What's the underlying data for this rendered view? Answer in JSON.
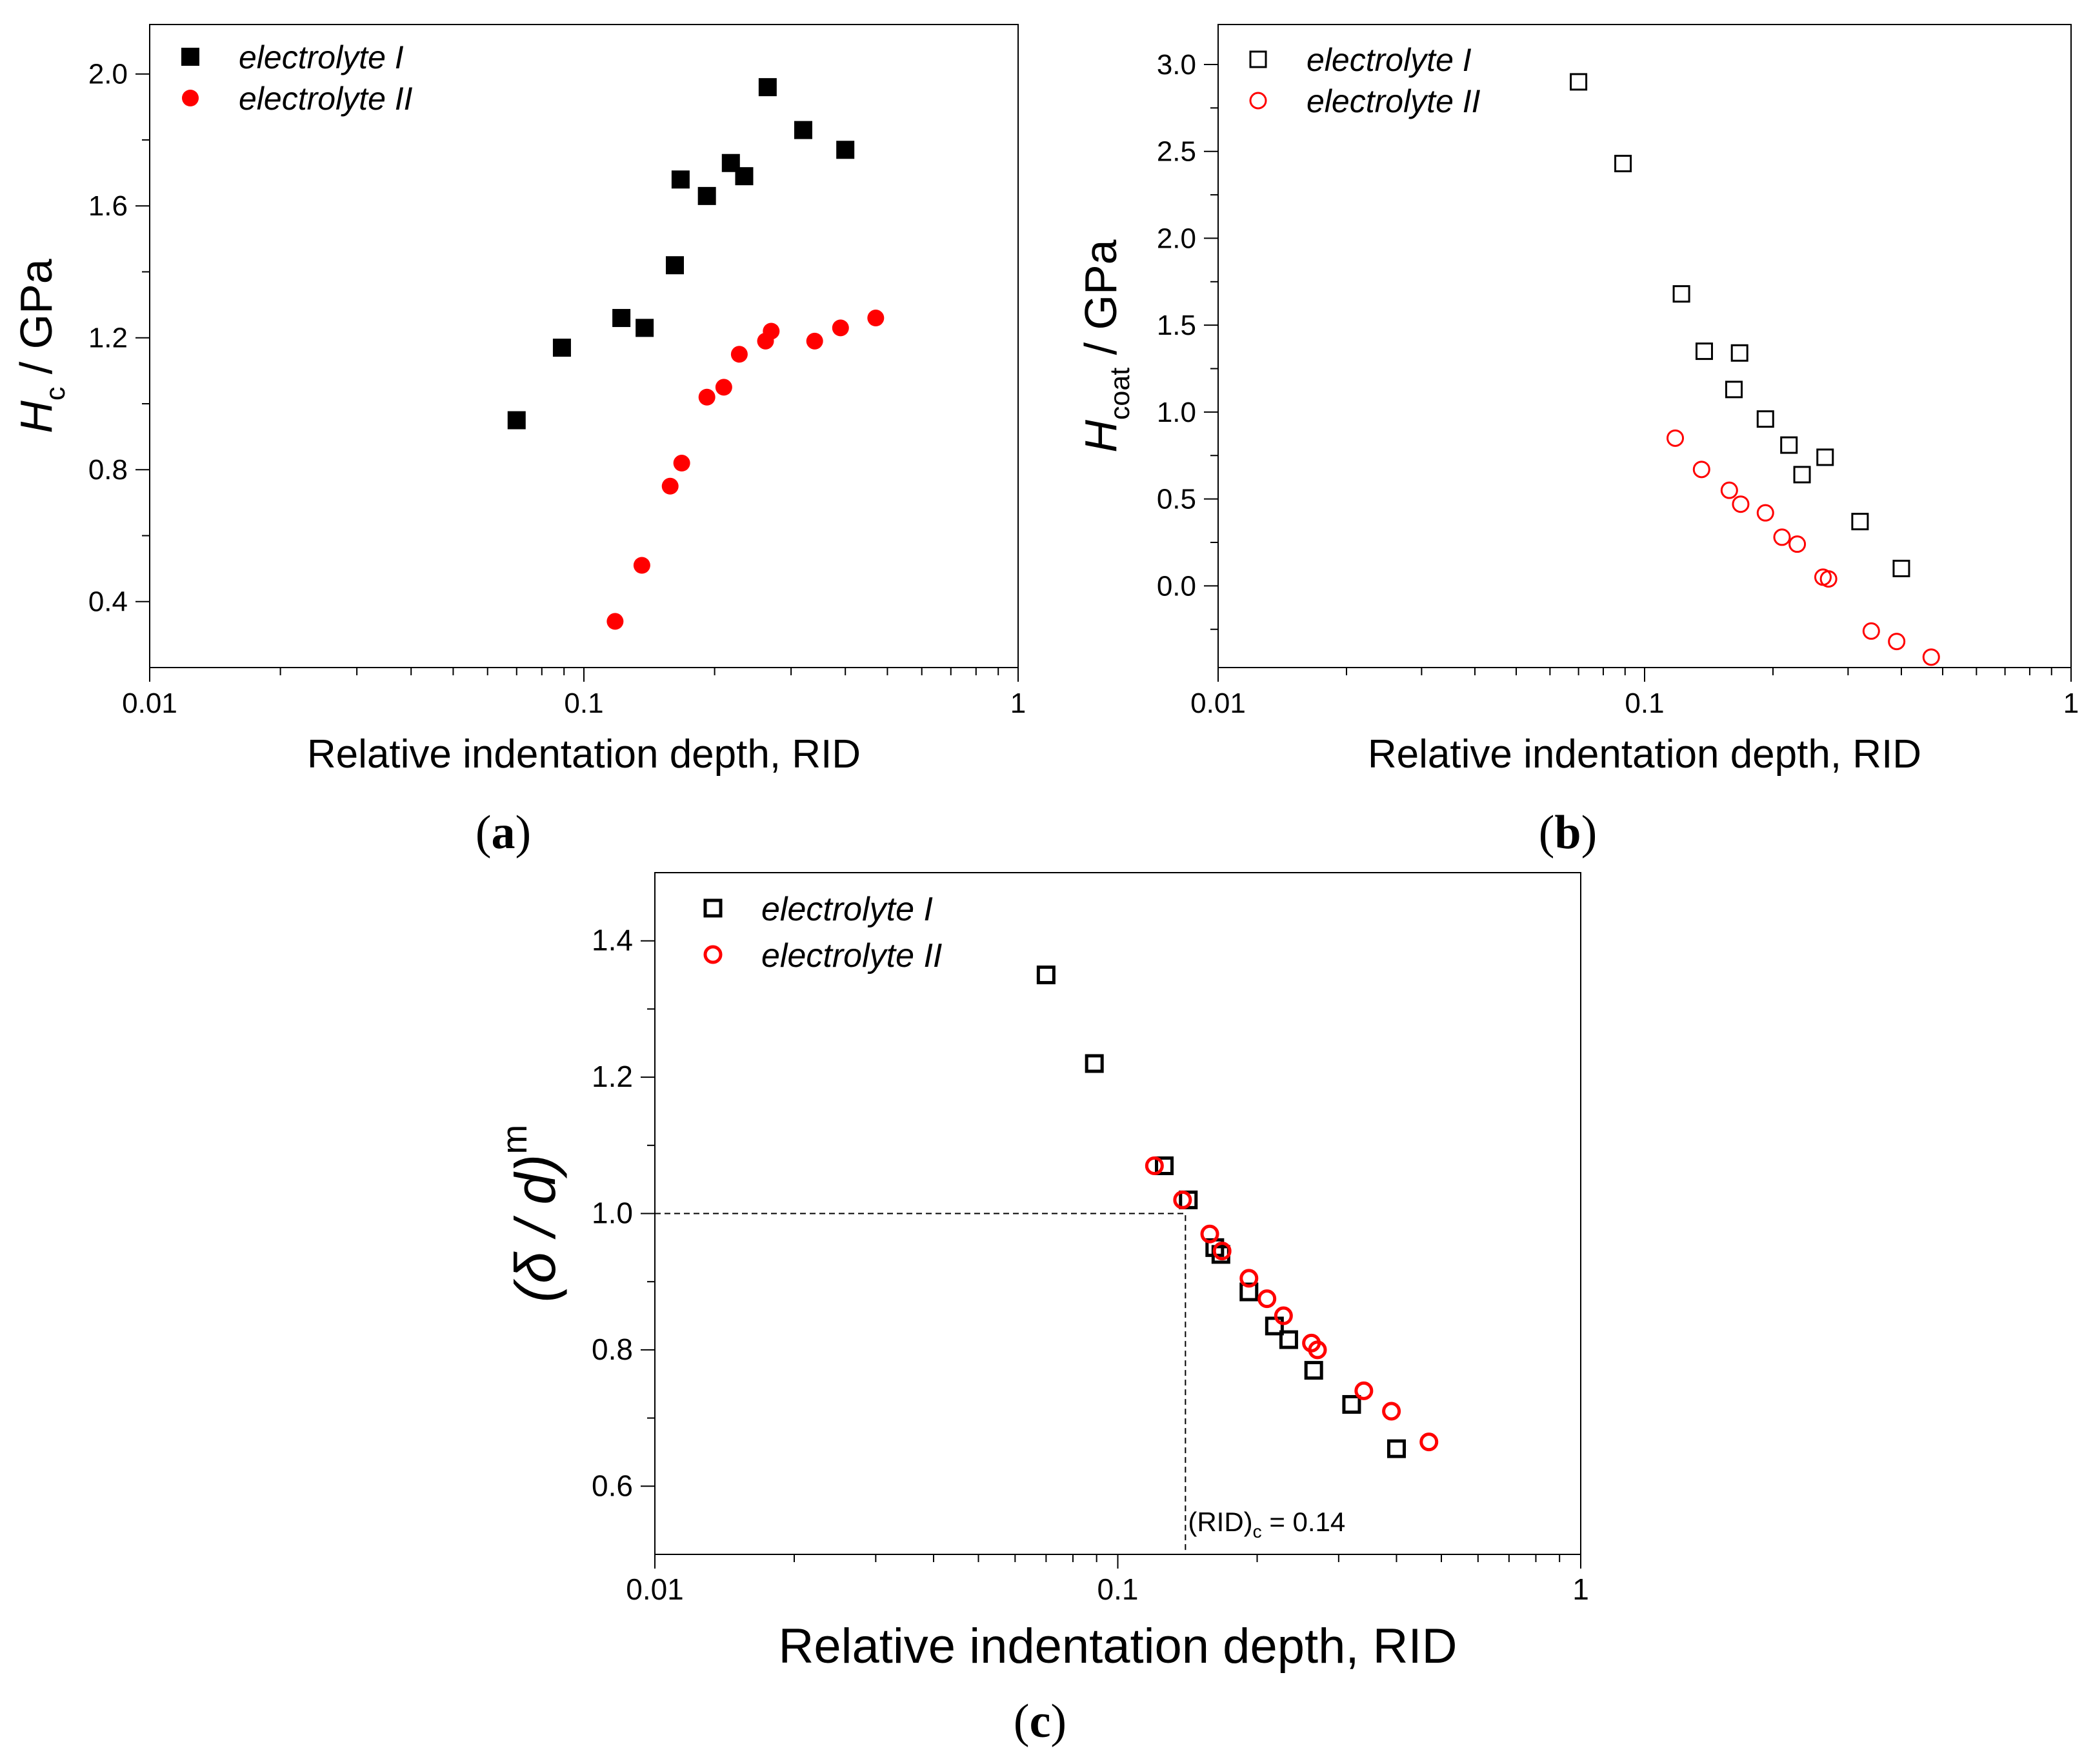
{
  "colors": {
    "series_I": "#000000",
    "series_II": "#ff0000"
  },
  "charts": [
    {
      "caption": "(a)",
      "caption_letter": "a",
      "chart_data": {
        "type": "scatter",
        "xscale": "log",
        "xlim": [
          0.01,
          1
        ],
        "ylim": [
          0.2,
          2.15
        ],
        "xticks": [
          0.01,
          0.1,
          1
        ],
        "xtick_labels": [
          "0.01",
          "0.1",
          "1"
        ],
        "yticks": [
          0.4,
          0.8,
          1.2,
          1.6,
          2.0
        ],
        "ytick_labels": [
          "0.4",
          "0.8",
          "1.2",
          "1.6",
          "2.0"
        ],
        "xlabel": "Relative indentation depth, RID",
        "ylabel_main": "H",
        "ylabel_sub": "c",
        "ylabel_rest": " / GPa",
        "grid": false,
        "legend": "top-left",
        "series": [
          {
            "name": "electrolyte I",
            "marker": "square-filled",
            "color": "#000000",
            "x": [
              0.07,
              0.089,
              0.122,
              0.138,
              0.162,
              0.167,
              0.192,
              0.218,
              0.234,
              0.265,
              0.32,
              0.4
            ],
            "y": [
              0.95,
              1.17,
              1.26,
              1.23,
              1.42,
              1.68,
              1.63,
              1.73,
              1.69,
              1.96,
              1.83,
              1.77
            ]
          },
          {
            "name": "electrolyte II",
            "marker": "circle-filled",
            "color": "#ff0000",
            "x": [
              0.118,
              0.136,
              0.158,
              0.168,
              0.192,
              0.21,
              0.228,
              0.262,
              0.27,
              0.34,
              0.39,
              0.47
            ],
            "y": [
              0.34,
              0.51,
              0.75,
              0.82,
              1.02,
              1.05,
              1.15,
              1.19,
              1.22,
              1.19,
              1.23,
              1.26
            ]
          }
        ]
      }
    },
    {
      "caption": "(b)",
      "caption_letter": "b",
      "chart_data": {
        "type": "scatter",
        "xscale": "log",
        "xlim": [
          0.01,
          1
        ],
        "ylim": [
          -0.47,
          3.23
        ],
        "xticks": [
          0.01,
          0.1,
          1
        ],
        "xtick_labels": [
          "0.01",
          "0.1",
          "1"
        ],
        "yticks": [
          0.0,
          0.5,
          1.0,
          1.5,
          2.0,
          2.5,
          3.0
        ],
        "ytick_labels": [
          "0.0",
          "0.5",
          "1.0",
          "1.5",
          "2.0",
          "2.5",
          "3.0"
        ],
        "xlabel": "Relative indentation depth, RID",
        "ylabel_main": "H",
        "ylabel_sub": "coat",
        "ylabel_rest": " / GPa",
        "grid": false,
        "legend": "top-left",
        "series": [
          {
            "name": "electrolyte I",
            "marker": "square-open",
            "color": "#000000",
            "x": [
              0.07,
              0.089,
              0.122,
              0.138,
              0.162,
              0.167,
              0.192,
              0.218,
              0.234,
              0.265,
              0.32,
              0.4
            ],
            "y": [
              2.9,
              2.43,
              1.68,
              1.35,
              1.13,
              1.34,
              0.96,
              0.81,
              0.64,
              0.74,
              0.37,
              0.1
            ]
          },
          {
            "name": "electrolyte II",
            "marker": "circle-open",
            "color": "#ff0000",
            "x": [
              0.118,
              0.136,
              0.158,
              0.168,
              0.192,
              0.21,
              0.228,
              0.262,
              0.27,
              0.34,
              0.39,
              0.47
            ],
            "y": [
              0.85,
              0.67,
              0.55,
              0.47,
              0.42,
              0.28,
              0.24,
              0.05,
              0.04,
              -0.26,
              -0.32,
              -0.41
            ]
          }
        ]
      }
    },
    {
      "caption": "(c)",
      "caption_letter": "c",
      "chart_data": {
        "type": "scatter",
        "xscale": "log",
        "xlim": [
          0.01,
          1
        ],
        "ylim": [
          0.5,
          1.5
        ],
        "xticks": [
          0.01,
          0.1,
          1
        ],
        "xtick_labels": [
          "0.01",
          "0.1",
          "1"
        ],
        "yticks": [
          0.6,
          0.8,
          1.0,
          1.2,
          1.4
        ],
        "ytick_labels": [
          "0.6",
          "0.8",
          "1.0",
          "1.2",
          "1.4"
        ],
        "xlabel": "Relative indentation depth, RID",
        "ylabel_main": "(δ / d)",
        "ylabel_sup": "m",
        "grid": false,
        "legend": "top-left",
        "annotation": {
          "pre": "(RID)",
          "sub": "c",
          "post": " = 0.14",
          "x": 0.14,
          "y": 1.0
        },
        "series": [
          {
            "name": "electrolyte I",
            "marker": "square-open-thick",
            "color": "#000000",
            "x": [
              0.07,
              0.089,
              0.126,
              0.142,
              0.162,
              0.167,
              0.192,
              0.218,
              0.234,
              0.265,
              0.32,
              0.4
            ],
            "y": [
              1.35,
              1.22,
              1.07,
              1.02,
              0.95,
              0.94,
              0.885,
              0.835,
              0.815,
              0.77,
              0.72,
              0.655
            ]
          },
          {
            "name": "electrolyte II",
            "marker": "circle-open-thick",
            "color": "#ff0000",
            "x": [
              0.12,
              0.138,
              0.158,
              0.168,
              0.192,
              0.21,
              0.228,
              0.262,
              0.27,
              0.34,
              0.39,
              0.47
            ],
            "y": [
              1.07,
              1.02,
              0.97,
              0.945,
              0.905,
              0.875,
              0.85,
              0.81,
              0.8,
              0.74,
              0.71,
              0.665
            ]
          }
        ]
      }
    }
  ]
}
